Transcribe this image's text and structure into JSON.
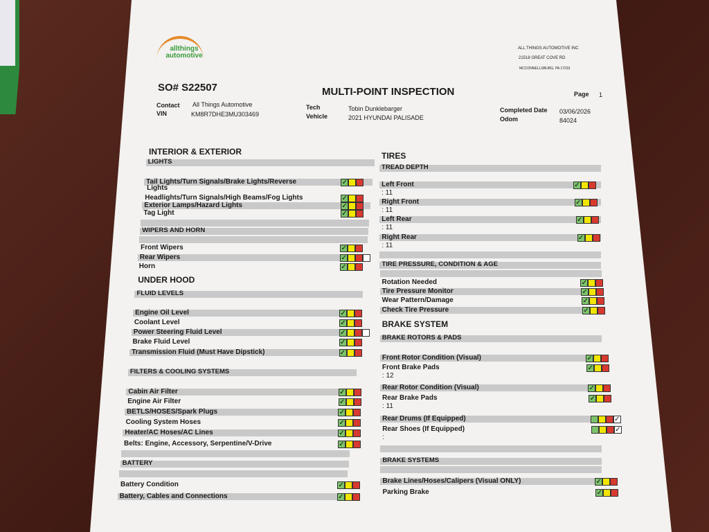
{
  "header": {
    "logo_text": "allthings automotive",
    "company": "ALL THINGS AUTOMOTIVE INC",
    "address1": "21518 GREAT COVE RD",
    "address2": "MCCONNELLSBURG, PA  17233",
    "so": "SO# S22507",
    "title": "MULTI-POINT INSPECTION",
    "page_label": "Page",
    "page": "1",
    "contact_label": "Contact",
    "contact": "All Things Automotive",
    "vin_label": "VIN",
    "vin": "KM8R7DHE3MU303469",
    "tech_label": "Tech",
    "tech": "Tobin Dunklebarger",
    "vehicle_label": "Vehicle",
    "vehicle": "2021 HYUNDAI PALISADE",
    "completed_label": "Completed Date",
    "completed": "03/06/2026",
    "odom_label": "Odom",
    "odom": "84024"
  },
  "colors": {
    "pass": "#7cc36a",
    "attention": "#f2e600",
    "fail": "#d83a30"
  },
  "left": [
    {
      "kind": "section",
      "text": "INTERIOR & EXTERIOR"
    },
    {
      "kind": "group",
      "text": "LIGHTS"
    },
    {
      "kind": "item",
      "text": "Tail Lights/Turn Signals/Brake Lights/Reverse",
      "text2": "Lights",
      "status": "pass"
    },
    {
      "kind": "item",
      "text": "Headlights/Turn Signals/High Beams/Fog Lights",
      "status": "pass"
    },
    {
      "kind": "item",
      "text": "Exterior Lamps/Hazard Lights",
      "status": "pass"
    },
    {
      "kind": "item",
      "text": "Tag Light",
      "status": "pass"
    },
    {
      "kind": "group",
      "text": "WIPERS AND HORN"
    },
    {
      "kind": "item",
      "text": "Front Wipers",
      "status": "pass"
    },
    {
      "kind": "item",
      "text": "Rear Wipers",
      "status": "pass",
      "na": "unchecked"
    },
    {
      "kind": "item",
      "text": "Horn",
      "status": "pass"
    },
    {
      "kind": "section",
      "text": "UNDER HOOD"
    },
    {
      "kind": "group",
      "text": "FLUID LEVELS"
    },
    {
      "kind": "item",
      "text": "Engine Oil Level",
      "status": "pass"
    },
    {
      "kind": "item",
      "text": "Coolant Level",
      "status": "pass"
    },
    {
      "kind": "item",
      "text": "Power Steering Fluid Level",
      "status": "pass",
      "na": "unchecked"
    },
    {
      "kind": "item",
      "text": "Brake Fluid Level",
      "status": "pass"
    },
    {
      "kind": "item",
      "text": "Transmission Fluid (Must Have Dipstick)",
      "status": "pass"
    },
    {
      "kind": "group",
      "text": "FILTERS & COOLING SYSTEMS"
    },
    {
      "kind": "item",
      "text": "Cabin Air Filter",
      "status": "pass"
    },
    {
      "kind": "item",
      "text": "Engine Air Filter",
      "status": "pass"
    },
    {
      "kind": "item",
      "text": "BETLS/HOSES/Spark Plugs",
      "status": "pass"
    },
    {
      "kind": "item",
      "text": "Cooling System Hoses",
      "status": "pass"
    },
    {
      "kind": "item",
      "text": "Heater/AC Hoses/AC Lines",
      "status": "pass"
    },
    {
      "kind": "item",
      "text": "Belts: Engine, Accessory, Serpentine/V-Drive",
      "status": "pass"
    },
    {
      "kind": "group",
      "text": "BATTERY"
    },
    {
      "kind": "item",
      "text": "Battery Condition",
      "status": "pass"
    },
    {
      "kind": "item",
      "text": "Battery, Cables and Connections",
      "status": "pass"
    }
  ],
  "right": [
    {
      "kind": "section",
      "text": "TIRES"
    },
    {
      "kind": "group",
      "text": "TREAD DEPTH"
    },
    {
      "kind": "item",
      "text": "Left Front",
      "value": ": 11",
      "status": "pass"
    },
    {
      "kind": "item",
      "text": "Right Front",
      "value": ": 11",
      "status": "pass"
    },
    {
      "kind": "item",
      "text": "Left Rear",
      "value": ": 11",
      "status": "pass"
    },
    {
      "kind": "item",
      "text": "Right Rear",
      "value": ": 11",
      "status": "pass"
    },
    {
      "kind": "group",
      "text": "TIRE PRESSURE, CONDITION & AGE"
    },
    {
      "kind": "item",
      "text": "Rotation Needed",
      "status": "pass"
    },
    {
      "kind": "item",
      "text": "Tire Pressure Monitor",
      "status": "pass"
    },
    {
      "kind": "item",
      "text": "Wear Pattern/Damage",
      "status": "pass"
    },
    {
      "kind": "item",
      "text": "Check Tire Pressure",
      "status": "pass"
    },
    {
      "kind": "section",
      "text": "BRAKE SYSTEM"
    },
    {
      "kind": "group",
      "text": "BRAKE ROTORS & PADS"
    },
    {
      "kind": "item",
      "text": "Front Rotor Condition (Visual)",
      "status": "pass"
    },
    {
      "kind": "item",
      "text": "Front Brake Pads",
      "value": ": 12",
      "status": "pass"
    },
    {
      "kind": "item",
      "text": "Rear Rotor Condition (Visual)",
      "status": "pass"
    },
    {
      "kind": "item",
      "text": "Rear Brake Pads",
      "value": ": 11",
      "status": "pass"
    },
    {
      "kind": "item",
      "text": "Rear Drums (If Equipped)",
      "status": "na",
      "na": "checked"
    },
    {
      "kind": "item",
      "text": "Rear Shoes (If Equipped)",
      "value": ":",
      "status": "na",
      "na": "checked"
    },
    {
      "kind": "group",
      "text": "BRAKE SYSTEMS"
    },
    {
      "kind": "item",
      "text": "Brake Lines/Hoses/Calipers (Visual ONLY)",
      "status": "pass"
    },
    {
      "kind": "item",
      "text": "Parking Brake",
      "status": "pass"
    }
  ]
}
